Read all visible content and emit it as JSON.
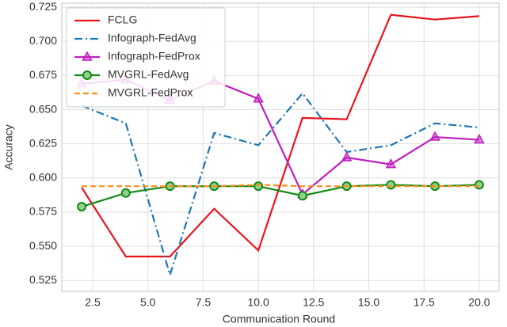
{
  "chart_data": {
    "type": "line",
    "x_label": "Communication Round",
    "y_label": "Accuracy",
    "x": [
      2,
      4,
      6,
      8,
      10,
      12,
      14,
      16,
      18,
      20
    ],
    "series": [
      {
        "name": "FCLG",
        "color": "#e8141c",
        "linestyle": "solid",
        "marker": "none",
        "values": [
          0.593,
          0.5425,
          0.5425,
          0.5775,
          0.547,
          0.644,
          0.643,
          0.7195,
          0.716,
          0.7185
        ]
      },
      {
        "name": "Infograph-FedAvg",
        "color": "#1f77b4",
        "linestyle": "dashdot",
        "marker": "none",
        "values": [
          0.653,
          0.64,
          0.529,
          0.633,
          0.624,
          0.662,
          0.619,
          0.624,
          0.64,
          0.637
        ]
      },
      {
        "name": "Infograph-FedProx",
        "color": "#bf1fbf",
        "linestyle": "solid",
        "marker": "triangle",
        "values": [
          0.669,
          0.672,
          0.657,
          0.671,
          0.658,
          0.588,
          0.615,
          0.61,
          0.63,
          0.628
        ]
      },
      {
        "name": "MVGRL-FedAvg",
        "color": "#138a13",
        "linestyle": "solid",
        "marker": "circle",
        "values": [
          0.579,
          0.589,
          0.594,
          0.594,
          0.594,
          0.587,
          0.594,
          0.595,
          0.594,
          0.595
        ]
      },
      {
        "name": "MVGRL-FedProx",
        "color": "#ff8c1a",
        "linestyle": "dashed",
        "marker": "none",
        "values": [
          0.594,
          0.594,
          0.594,
          0.594,
          0.595,
          0.594,
          0.594,
          0.594,
          0.594,
          0.594
        ]
      }
    ],
    "xlim": [
      1.1,
      20.9
    ],
    "ylim": [
      0.517,
      0.728
    ],
    "xticks": [
      2.5,
      {
        "value": 5,
        "label": "5.0"
      },
      7.5,
      {
        "value": 10,
        "label": "10.0"
      },
      12.5,
      {
        "value": 15,
        "label": "15.0"
      },
      17.5,
      {
        "value": 20,
        "label": "20.0"
      }
    ],
    "yticks": [
      0.525,
      {
        "value": 0.55,
        "label": "0.550"
      },
      0.575,
      {
        "value": 0.6,
        "label": "0.600"
      },
      0.625,
      {
        "value": 0.65,
        "label": "0.650"
      },
      0.675,
      {
        "value": 0.7,
        "label": "0.700"
      },
      0.725
    ],
    "grid": true,
    "legend": "upper-left"
  }
}
